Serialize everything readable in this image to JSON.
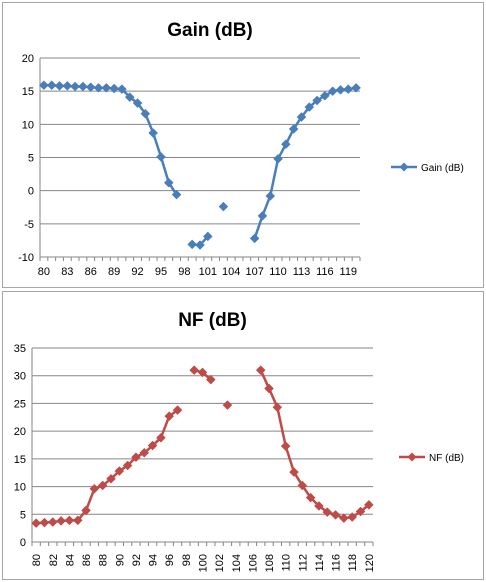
{
  "chart_data": [
    {
      "type": "line",
      "title": "Gain (dB)",
      "xlabel": "",
      "ylabel": "",
      "ylim": [
        -10,
        20
      ],
      "ytick_step": 5,
      "categories": [
        "80",
        "81",
        "82",
        "83",
        "84",
        "85",
        "86",
        "87",
        "88",
        "89",
        "90",
        "91",
        "92",
        "93",
        "94",
        "95",
        "96",
        "97",
        "98",
        "99",
        "100",
        "101",
        "102",
        "103",
        "104",
        "105",
        "106",
        "107",
        "108",
        "109",
        "110",
        "111",
        "112",
        "113",
        "114",
        "115",
        "116",
        "117",
        "118",
        "119",
        "120"
      ],
      "tick_labels": [
        "80",
        "",
        "",
        "83",
        "",
        "",
        "86",
        "",
        "",
        "89",
        "",
        "",
        "92",
        "",
        "",
        "95",
        "",
        "",
        "98",
        "",
        "",
        "101",
        "",
        "",
        "104",
        "",
        "",
        "107",
        "",
        "",
        "110",
        "",
        "",
        "113",
        "",
        "",
        "116",
        "",
        "",
        "119",
        ""
      ],
      "grid": "horizontal",
      "legend": "right",
      "series": [
        {
          "name": "Gain (dB)",
          "color": "#4a7ebb",
          "values": [
            15.9,
            15.9,
            15.8,
            15.8,
            15.7,
            15.7,
            15.6,
            15.5,
            15.5,
            15.4,
            15.3,
            14.1,
            13.2,
            11.6,
            8.7,
            5.1,
            1.2,
            -0.6,
            null,
            -8.1,
            -8.2,
            -6.9,
            null,
            -2.4,
            null,
            null,
            null,
            -7.2,
            -3.8,
            -0.8,
            4.8,
            7.0,
            9.3,
            11.1,
            12.6,
            13.6,
            14.3,
            15.0,
            15.2,
            15.3,
            15.5
          ]
        }
      ]
    },
    {
      "type": "line",
      "title": "NF (dB)",
      "xlabel": "",
      "ylabel": "",
      "ylim": [
        0,
        35
      ],
      "ytick_step": 5,
      "categories": [
        "80",
        "81",
        "82",
        "83",
        "84",
        "85",
        "86",
        "87",
        "88",
        "89",
        "90",
        "91",
        "92",
        "93",
        "94",
        "95",
        "96",
        "97",
        "98",
        "99",
        "100",
        "101",
        "102",
        "103",
        "104",
        "105",
        "106",
        "107",
        "108",
        "109",
        "110",
        "111",
        "112",
        "113",
        "114",
        "115",
        "116",
        "117",
        "118",
        "119",
        "120"
      ],
      "tick_labels": [
        "80",
        "",
        "82",
        "",
        "84",
        "",
        "86",
        "",
        "88",
        "",
        "90",
        "",
        "92",
        "",
        "94",
        "",
        "96",
        "",
        "98",
        "",
        "100",
        "",
        "102",
        "",
        "104",
        "",
        "106",
        "",
        "108",
        "",
        "110",
        "",
        "112",
        "",
        "114",
        "",
        "116",
        "",
        "118",
        "",
        "120"
      ],
      "grid": "horizontal",
      "legend": "right",
      "series": [
        {
          "name": "NF (dB)",
          "color": "#be4b48",
          "values": [
            3.4,
            3.5,
            3.6,
            3.8,
            3.9,
            3.9,
            5.7,
            9.6,
            10.2,
            11.4,
            12.8,
            13.8,
            15.3,
            16.1,
            17.4,
            18.8,
            22.7,
            23.8,
            null,
            31.0,
            30.6,
            29.3,
            null,
            24.7,
            null,
            null,
            null,
            31.0,
            27.7,
            24.3,
            17.3,
            12.6,
            10.2,
            8.0,
            6.5,
            5.4,
            4.9,
            4.3,
            4.5,
            5.5,
            6.7
          ]
        }
      ]
    }
  ]
}
